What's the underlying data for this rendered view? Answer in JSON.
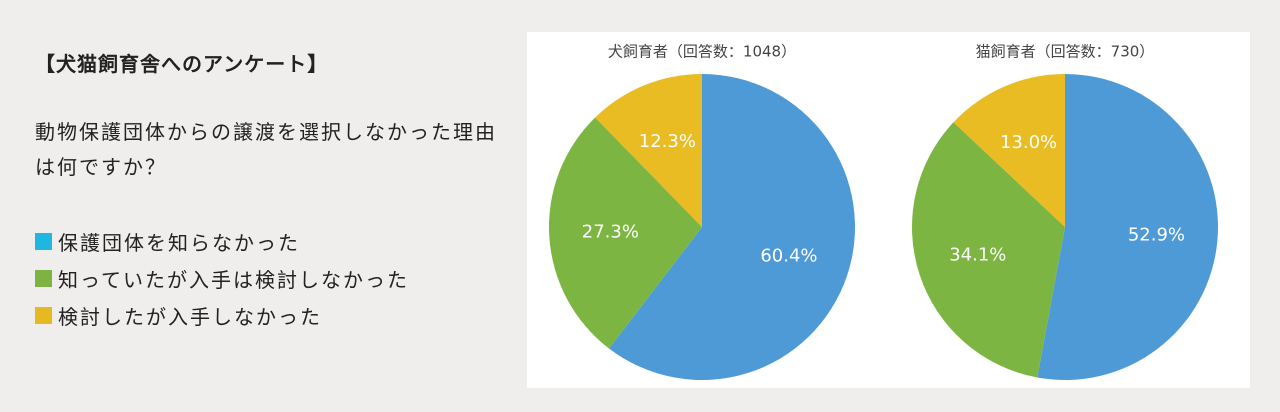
{
  "heading": "【犬猫飼育舎へのアンケート】",
  "question": "動物保護団体からの譲渡を選択しなかった理由は何ですか？",
  "legend": {
    "labels": [
      "保護団体を知らなかった",
      "知っていたが入手は検討しなかった",
      "検討したが入手しなかった"
    ],
    "colors": [
      "#1fb7e0",
      "#7cb342",
      "#e6b822"
    ]
  },
  "chart_data": [
    {
      "type": "pie",
      "title": "犬飼育者（回答数：1048）",
      "values": [
        60.4,
        27.3,
        12.3
      ],
      "value_labels": [
        "60.4%",
        "27.3%",
        "12.3%"
      ],
      "colors": [
        "#4e9ad6",
        "#7db543",
        "#e8bc22"
      ]
    },
    {
      "type": "pie",
      "title": "猫飼育者（回答数：730）",
      "values": [
        52.9,
        34.1,
        13.0
      ],
      "value_labels": [
        "52.9%",
        "34.1%",
        "13.0%"
      ],
      "colors": [
        "#4e9ad6",
        "#7db543",
        "#e8bc22"
      ]
    }
  ]
}
